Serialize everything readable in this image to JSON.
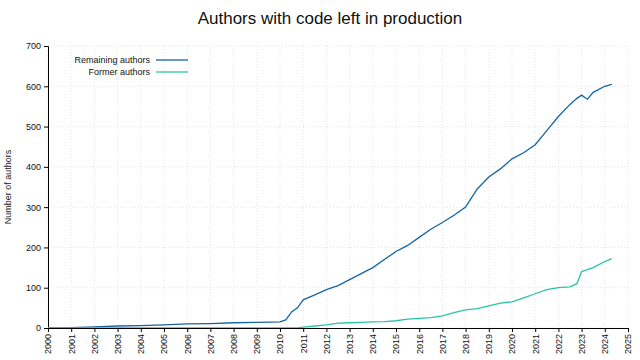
{
  "chart_data": {
    "type": "line",
    "title": "Authors with code left in production",
    "y_label": "Number of authors",
    "x": [
      2000,
      2001,
      2002,
      2003,
      2004,
      2005,
      2006,
      2007,
      2008,
      2009,
      2010,
      2010.25,
      2010.5,
      2010.75,
      2011,
      2011.5,
      2012,
      2012.5,
      2013,
      2013.5,
      2014,
      2014.5,
      2015,
      2015.5,
      2016,
      2016.5,
      2017,
      2017.5,
      2018,
      2018.5,
      2019,
      2019.5,
      2020,
      2020.5,
      2021,
      2021.5,
      2022,
      2022.5,
      2022.8,
      2023,
      2023.25,
      2023.5,
      2024,
      2024.3
    ],
    "series": [
      {
        "name": "Remaining authors",
        "color": "#1565a6",
        "values": [
          0,
          1,
          3,
          5,
          6,
          8,
          10,
          11,
          13,
          14,
          15,
          20,
          40,
          50,
          70,
          82,
          95,
          105,
          120,
          135,
          150,
          170,
          190,
          205,
          225,
          245,
          262,
          280,
          300,
          345,
          375,
          395,
          420,
          435,
          455,
          490,
          525,
          555,
          570,
          578,
          568,
          585,
          600,
          605
        ]
      },
      {
        "name": "Former authors",
        "color": "#2bc4a6",
        "values": [
          0,
          0,
          0,
          0,
          0,
          0,
          0,
          0,
          0,
          0,
          0,
          0,
          0,
          0,
          2,
          5,
          8,
          12,
          13,
          14,
          15,
          16,
          18,
          22,
          24,
          26,
          30,
          38,
          45,
          48,
          55,
          62,
          65,
          75,
          85,
          95,
          100,
          102,
          110,
          140,
          145,
          150,
          165,
          172
        ]
      }
    ],
    "xlim": [
      2000,
      2025
    ],
    "xticks": [
      2000,
      2001,
      2002,
      2003,
      2004,
      2005,
      2006,
      2007,
      2008,
      2009,
      2010,
      2011,
      2012,
      2013,
      2014,
      2015,
      2016,
      2017,
      2018,
      2019,
      2020,
      2021,
      2022,
      2023,
      2024,
      2025
    ],
    "ylim": [
      0,
      700
    ],
    "yticks": [
      0,
      100,
      200,
      300,
      400,
      500,
      600,
      700
    ],
    "grid": true,
    "legend": "upper left"
  }
}
